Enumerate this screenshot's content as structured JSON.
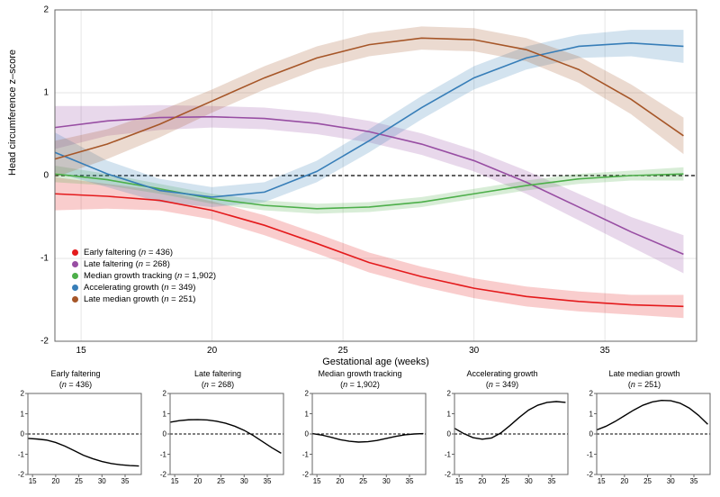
{
  "main_chart": {
    "type": "line",
    "xlabel": "Gestational age (weeks)",
    "ylabel": "Head circumference z–score",
    "xlim": [
      14,
      38.5
    ],
    "ylim": [
      -2,
      2
    ],
    "xticks": [
      15,
      20,
      25,
      30,
      35
    ],
    "yticks": [
      -2,
      -1,
      0,
      1,
      2
    ],
    "background_color": "#ffffff",
    "panel_border_color": "#666666",
    "grid_color": "#e6e6e6",
    "zero_line_color": "#000000",
    "zero_line_dash": "4,3",
    "label_fontsize": 11,
    "tick_fontsize": 10,
    "legend_fontsize": 9.5,
    "line_width": 1.6,
    "ribbon_opacity": 0.22,
    "series": [
      {
        "id": "early_faltering",
        "label": "Early faltering",
        "n": 436,
        "color": "#e41a1c",
        "x": [
          14,
          16,
          18,
          20,
          22,
          24,
          26,
          28,
          30,
          32,
          34,
          36,
          38
        ],
        "y": [
          -0.22,
          -0.25,
          -0.3,
          -0.42,
          -0.6,
          -0.82,
          -1.05,
          -1.22,
          -1.36,
          -1.46,
          -1.52,
          -1.56,
          -1.58
        ],
        "lo": [
          -0.42,
          -0.4,
          -0.42,
          -0.53,
          -0.72,
          -0.94,
          -1.17,
          -1.34,
          -1.48,
          -1.58,
          -1.64,
          -1.68,
          -1.72
        ],
        "hi": [
          -0.02,
          -0.1,
          -0.18,
          -0.31,
          -0.48,
          -0.7,
          -0.93,
          -1.1,
          -1.24,
          -1.34,
          -1.4,
          -1.44,
          -1.44
        ]
      },
      {
        "id": "late_faltering",
        "label": "Late faltering",
        "n": 268,
        "color": "#984ea3",
        "x": [
          14,
          16,
          18,
          20,
          22,
          24,
          26,
          28,
          30,
          32,
          34,
          36,
          38
        ],
        "y": [
          0.58,
          0.66,
          0.7,
          0.71,
          0.69,
          0.63,
          0.53,
          0.38,
          0.18,
          -0.08,
          -0.38,
          -0.68,
          -0.95
        ],
        "lo": [
          0.32,
          0.48,
          0.55,
          0.58,
          0.56,
          0.5,
          0.4,
          0.25,
          0.05,
          -0.22,
          -0.54,
          -0.86,
          -1.18
        ],
        "hi": [
          0.84,
          0.84,
          0.85,
          0.84,
          0.82,
          0.76,
          0.66,
          0.51,
          0.31,
          0.06,
          -0.22,
          -0.5,
          -0.72
        ]
      },
      {
        "id": "median_tracking",
        "label": "Median growth tracking",
        "n": 1902,
        "color": "#4daf4a",
        "x": [
          14,
          16,
          18,
          20,
          22,
          24,
          26,
          28,
          30,
          32,
          34,
          36,
          38
        ],
        "y": [
          0.02,
          -0.05,
          -0.16,
          -0.28,
          -0.36,
          -0.4,
          -0.38,
          -0.32,
          -0.22,
          -0.12,
          -0.04,
          0.0,
          0.02
        ],
        "lo": [
          -0.08,
          -0.12,
          -0.22,
          -0.34,
          -0.42,
          -0.46,
          -0.44,
          -0.38,
          -0.28,
          -0.18,
          -0.1,
          -0.06,
          -0.06
        ],
        "hi": [
          0.12,
          0.02,
          -0.1,
          -0.22,
          -0.3,
          -0.34,
          -0.32,
          -0.26,
          -0.16,
          -0.06,
          0.02,
          0.06,
          0.1
        ]
      },
      {
        "id": "accelerating",
        "label": "Accelerating growth",
        "n": 349,
        "color": "#377eb8",
        "x": [
          14,
          16,
          18,
          20,
          22,
          24,
          26,
          28,
          30,
          32,
          34,
          36,
          38
        ],
        "y": [
          0.28,
          0.02,
          -0.18,
          -0.26,
          -0.2,
          0.05,
          0.42,
          0.82,
          1.18,
          1.42,
          1.56,
          1.6,
          1.56
        ],
        "lo": [
          0.04,
          -0.14,
          -0.32,
          -0.38,
          -0.32,
          -0.08,
          0.28,
          0.68,
          1.04,
          1.28,
          1.42,
          1.44,
          1.36
        ],
        "hi": [
          0.52,
          0.18,
          -0.04,
          -0.14,
          -0.08,
          0.18,
          0.56,
          0.96,
          1.32,
          1.56,
          1.7,
          1.76,
          1.76
        ]
      },
      {
        "id": "late_median",
        "label": "Late median growth",
        "n": 251,
        "color": "#a65628",
        "x": [
          14,
          16,
          18,
          20,
          22,
          24,
          26,
          28,
          30,
          32,
          34,
          36,
          38
        ],
        "y": [
          0.2,
          0.38,
          0.62,
          0.9,
          1.18,
          1.42,
          1.58,
          1.66,
          1.64,
          1.52,
          1.28,
          0.92,
          0.48
        ],
        "lo": [
          -0.02,
          0.2,
          0.46,
          0.76,
          1.04,
          1.28,
          1.44,
          1.52,
          1.5,
          1.38,
          1.12,
          0.74,
          0.26
        ],
        "hi": [
          0.42,
          0.56,
          0.78,
          1.04,
          1.32,
          1.56,
          1.72,
          1.8,
          1.78,
          1.66,
          1.44,
          1.1,
          0.7
        ]
      }
    ]
  },
  "mini_charts": {
    "type": "line",
    "xlim": [
      14,
      38.5
    ],
    "ylim": [
      -2,
      2
    ],
    "xticks": [
      15,
      20,
      25,
      30,
      35
    ],
    "yticks": [
      -2,
      -1,
      0,
      1,
      2
    ],
    "line_color": "#000000",
    "line_width": 1.4,
    "panel_border_color": "#666666",
    "zero_line_color": "#000000",
    "zero_line_dash": "3,2",
    "title_fontsize": 9,
    "tick_fontsize": 8,
    "panels": [
      {
        "title": "Early faltering",
        "n": 436,
        "series_ref": "early_faltering"
      },
      {
        "title": "Late faltering",
        "n": 268,
        "series_ref": "late_faltering"
      },
      {
        "title": "Median growth tracking",
        "n": 1902,
        "series_ref": "median_tracking"
      },
      {
        "title": "Accelerating growth",
        "n": 349,
        "series_ref": "accelerating"
      },
      {
        "title": "Late median growth",
        "n": 251,
        "series_ref": "late_median"
      }
    ]
  }
}
